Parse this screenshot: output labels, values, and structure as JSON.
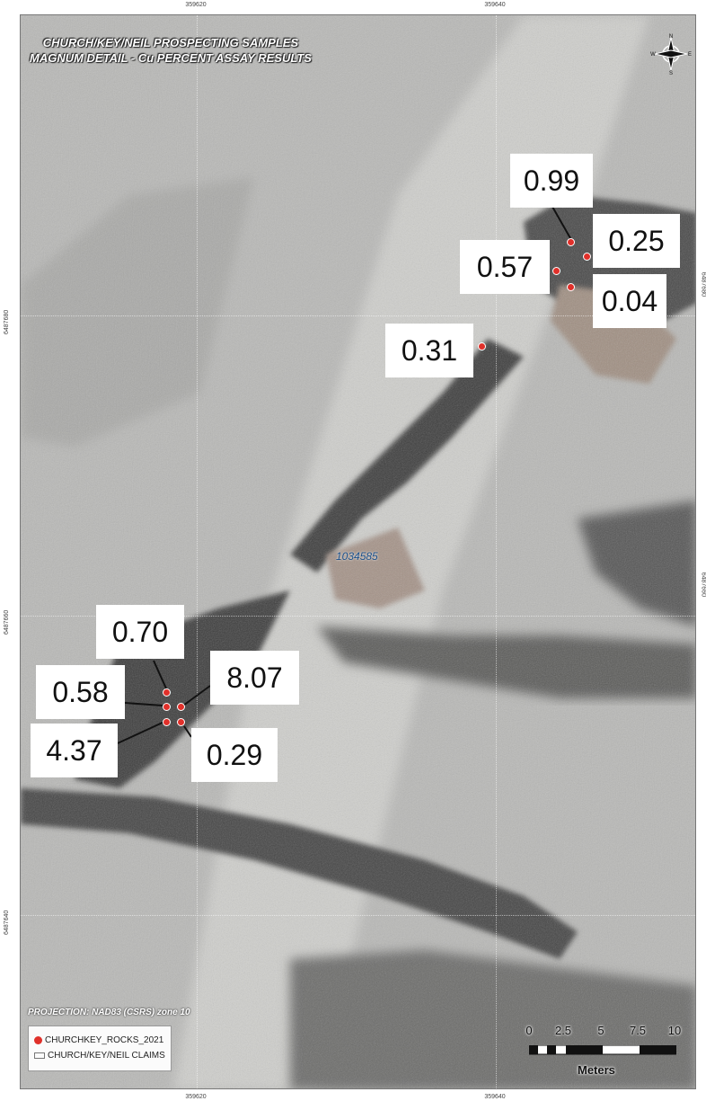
{
  "map": {
    "title_line1": "CHURCH/KEY/NEIL PROSPECTING SAMPLES",
    "title_line2": "MAGNUM DETAIL - Cu  PERCENT ASSAY RESULTS",
    "projection": "PROJECTION: NAD83 (CSRS) zone 10",
    "claim_id": "1034585",
    "colors": {
      "sample_point": "#e0302a",
      "claim_text": "#1a4f8a"
    }
  },
  "grid": {
    "easting_top": [
      "359620",
      "359640"
    ],
    "easting_bottom": [
      "359620",
      "359640"
    ],
    "northing_left": [
      "6487680",
      "6487660",
      "6487640"
    ],
    "northing_right": [
      "6487680",
      "6487660"
    ]
  },
  "samples": [
    {
      "value": "0.99"
    },
    {
      "value": "0.25"
    },
    {
      "value": "0.57"
    },
    {
      "value": "0.04"
    },
    {
      "value": "0.31"
    },
    {
      "value": "0.70"
    },
    {
      "value": "0.58"
    },
    {
      "value": "8.07"
    },
    {
      "value": "4.37"
    },
    {
      "value": "0.29"
    }
  ],
  "legend": {
    "items": [
      {
        "label": "CHURCHKEY_ROCKS_2021",
        "symbol": "red-dot-icon"
      },
      {
        "label": "CHURCH/KEY/NEIL CLAIMS",
        "symbol": "claim-outline-icon"
      }
    ]
  },
  "scale": {
    "ticks": [
      "0",
      "2.5",
      "5",
      "7.5",
      "10"
    ],
    "unit": "Meters"
  },
  "compass": {
    "n": "N",
    "s": "S",
    "e": "E",
    "w": "W",
    "icon": "north-arrow-icon"
  }
}
